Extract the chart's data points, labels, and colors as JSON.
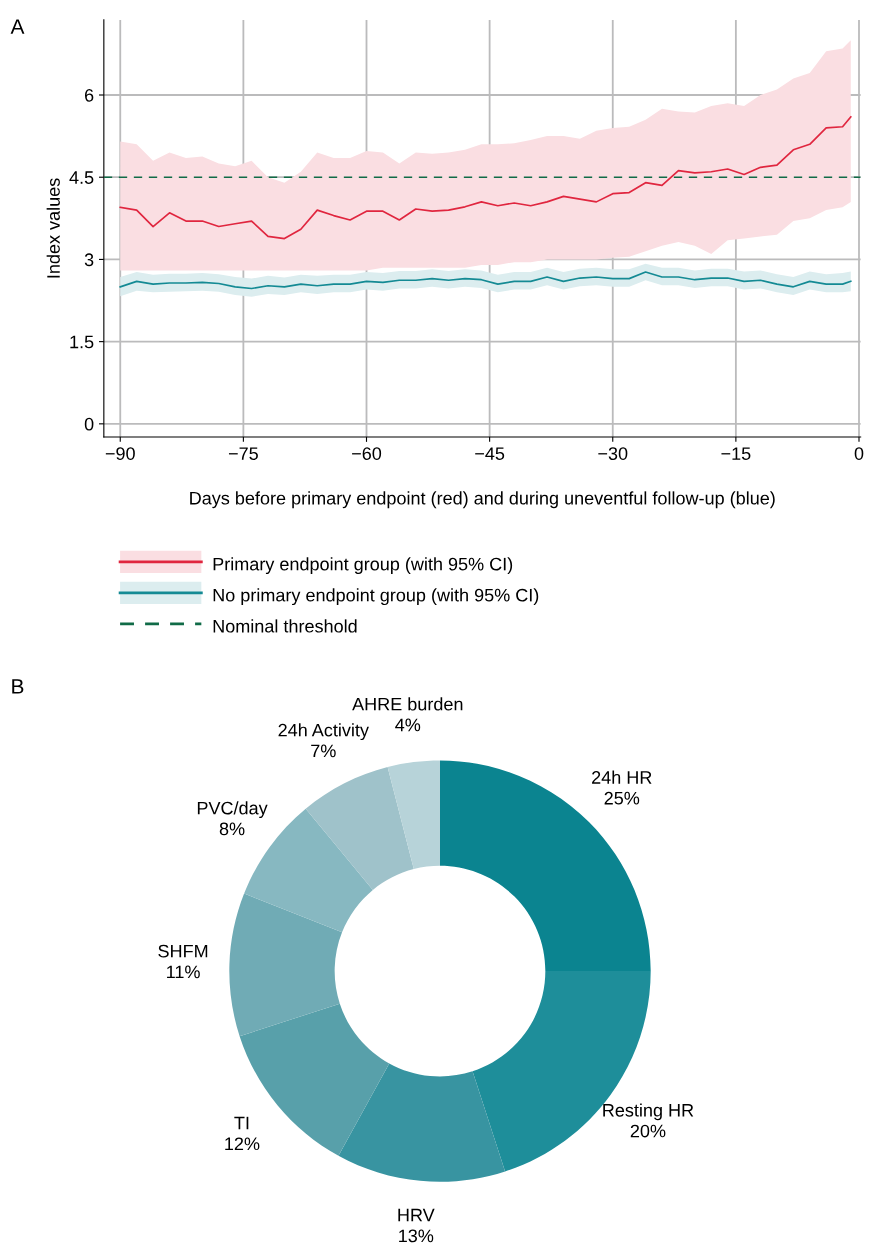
{
  "chart_data": [
    {
      "type": "line",
      "annotations": [
        "A"
      ],
      "xlabel": "Days before primary endpoint (red) and during uneventful follow-up (blue)",
      "ylabel": "Index values",
      "x": [
        -90,
        -88,
        -86,
        -84,
        -82,
        -80,
        -78,
        -76,
        -74,
        -72,
        -70,
        -68,
        -66,
        -64,
        -62,
        -60,
        -58,
        -56,
        -54,
        -52,
        -50,
        -48,
        -46,
        -44,
        -42,
        -40,
        -38,
        -36,
        -34,
        -32,
        -30,
        -28,
        -26,
        -24,
        -22,
        -20,
        -18,
        -16,
        -14,
        -12,
        -10,
        -8,
        -6,
        -4,
        -2,
        -1
      ],
      "series": [
        {
          "name": "Primary endpoint group (with 95% CI)",
          "color": "#e0263f",
          "values": [
            3.95,
            3.9,
            3.6,
            3.85,
            3.7,
            3.7,
            3.6,
            3.65,
            3.7,
            3.42,
            3.38,
            3.55,
            3.9,
            3.8,
            3.72,
            3.88,
            3.88,
            3.72,
            3.92,
            3.88,
            3.9,
            3.96,
            4.05,
            3.98,
            4.03,
            3.98,
            4.05,
            4.15,
            4.1,
            4.05,
            4.2,
            4.22,
            4.4,
            4.35,
            4.62,
            4.58,
            4.6,
            4.65,
            4.55,
            4.68,
            4.72,
            5.0,
            5.1,
            5.4,
            5.42,
            5.6
          ],
          "upper": [
            5.15,
            5.1,
            4.8,
            4.95,
            4.85,
            4.88,
            4.75,
            4.7,
            4.8,
            4.5,
            4.4,
            4.6,
            4.95,
            4.85,
            4.85,
            4.98,
            4.95,
            4.75,
            4.95,
            4.93,
            4.95,
            5.0,
            5.1,
            5.1,
            5.12,
            5.18,
            5.25,
            5.25,
            5.2,
            5.35,
            5.4,
            5.42,
            5.55,
            5.75,
            5.7,
            5.68,
            5.8,
            5.85,
            5.8,
            6.0,
            6.1,
            6.3,
            6.4,
            6.8,
            6.85,
            7.0
          ],
          "lower": [
            2.8,
            2.8,
            2.8,
            2.8,
            2.8,
            2.8,
            2.8,
            2.8,
            2.8,
            2.8,
            2.8,
            2.8,
            2.8,
            2.8,
            2.8,
            2.8,
            2.85,
            2.85,
            2.85,
            2.85,
            2.85,
            2.85,
            2.9,
            2.9,
            2.95,
            2.95,
            3.0,
            3.0,
            3.0,
            3.0,
            3.03,
            3.05,
            3.15,
            3.25,
            3.32,
            3.25,
            3.1,
            3.35,
            3.38,
            3.42,
            3.45,
            3.7,
            3.75,
            3.9,
            3.95,
            4.05
          ]
        },
        {
          "name": "No primary endpoint group (with 95% CI)",
          "color": "#148a94",
          "values": [
            2.5,
            2.6,
            2.55,
            2.57,
            2.57,
            2.58,
            2.56,
            2.5,
            2.47,
            2.52,
            2.5,
            2.55,
            2.52,
            2.55,
            2.55,
            2.6,
            2.58,
            2.62,
            2.62,
            2.65,
            2.62,
            2.65,
            2.63,
            2.55,
            2.6,
            2.6,
            2.68,
            2.6,
            2.66,
            2.68,
            2.65,
            2.65,
            2.77,
            2.68,
            2.68,
            2.63,
            2.66,
            2.66,
            2.6,
            2.62,
            2.55,
            2.5,
            2.6,
            2.55,
            2.55,
            2.6
          ],
          "upper": [
            2.68,
            2.77,
            2.72,
            2.74,
            2.74,
            2.75,
            2.73,
            2.68,
            2.65,
            2.7,
            2.67,
            2.72,
            2.7,
            2.72,
            2.72,
            2.77,
            2.75,
            2.79,
            2.79,
            2.82,
            2.79,
            2.82,
            2.8,
            2.72,
            2.77,
            2.77,
            2.85,
            2.77,
            2.83,
            2.85,
            2.82,
            2.82,
            2.92,
            2.85,
            2.85,
            2.8,
            2.83,
            2.83,
            2.78,
            2.8,
            2.73,
            2.68,
            2.78,
            2.73,
            2.75,
            2.78
          ],
          "lower": [
            2.33,
            2.43,
            2.4,
            2.41,
            2.42,
            2.43,
            2.41,
            2.35,
            2.32,
            2.37,
            2.35,
            2.4,
            2.37,
            2.4,
            2.4,
            2.45,
            2.43,
            2.47,
            2.47,
            2.5,
            2.47,
            2.5,
            2.48,
            2.4,
            2.45,
            2.45,
            2.53,
            2.45,
            2.51,
            2.53,
            2.5,
            2.5,
            2.62,
            2.53,
            2.53,
            2.48,
            2.51,
            2.51,
            2.45,
            2.47,
            2.4,
            2.35,
            2.45,
            2.4,
            2.4,
            2.42
          ]
        }
      ],
      "ref_lines": [
        {
          "axis": "y",
          "value": 4.5,
          "label": "Nominal threshold",
          "color": "#106b47",
          "line_style": "dashed"
        }
      ],
      "xlim": [
        -92,
        0.2
      ],
      "xticks": [
        {
          "value": -90,
          "label": "−90"
        },
        {
          "value": -75,
          "label": "−75"
        },
        {
          "value": -60,
          "label": "−60"
        },
        {
          "value": -45,
          "label": "−45"
        },
        {
          "value": -30,
          "label": "−30"
        },
        {
          "value": -15,
          "label": "−15"
        },
        0
      ],
      "ylim": [
        -0.24,
        7.37
      ],
      "yticks": [
        0,
        1.5,
        3,
        4.5,
        6
      ],
      "grid": true,
      "legend": "bottom"
    },
    {
      "type": "donut",
      "annotations": [
        "B"
      ],
      "categories": [
        "24h HR",
        "Resting HR",
        "HRV",
        "TI",
        "SHFM",
        "PVC/day",
        "24h Activity",
        "AHRE burden"
      ],
      "values": [
        25,
        20,
        13,
        12,
        11,
        8,
        7,
        4
      ],
      "value_labels": [
        "25%",
        "20%",
        "13%",
        "12%",
        "11%",
        "8%",
        "7%",
        "4%"
      ],
      "colors": [
        "#0b8490",
        "#1e8e9a",
        "#3894a1",
        "#58a0aa",
        "#70abb5",
        "#87b8c1",
        "#9fc2ca",
        "#b7d3d9"
      ]
    }
  ]
}
